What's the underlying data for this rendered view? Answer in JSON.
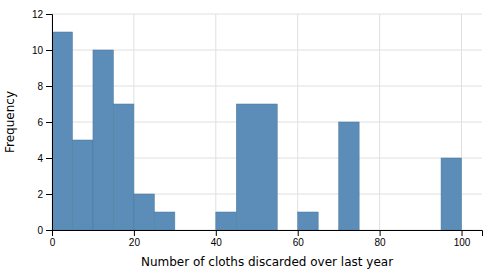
{
  "chart_data": {
    "type": "histogram",
    "x": [
      0,
      5,
      10,
      15,
      20,
      25,
      40,
      45,
      60,
      70,
      95
    ],
    "widths": [
      5,
      5,
      5,
      5,
      5,
      5,
      5,
      10,
      5,
      5,
      5
    ],
    "values": [
      11,
      5,
      10,
      7,
      2,
      1,
      1,
      7,
      1,
      6,
      4
    ],
    "color": "#5b8db8",
    "xlabel": "Number of cloths discarded over last year",
    "ylabel": "Frequency",
    "xlim": [
      0,
      105
    ],
    "ylim": [
      0,
      12
    ],
    "xticks": [
      0,
      20,
      40,
      60,
      80,
      100
    ],
    "yticks": [
      0,
      2,
      4,
      6,
      8,
      10,
      12
    ],
    "grid": true
  }
}
